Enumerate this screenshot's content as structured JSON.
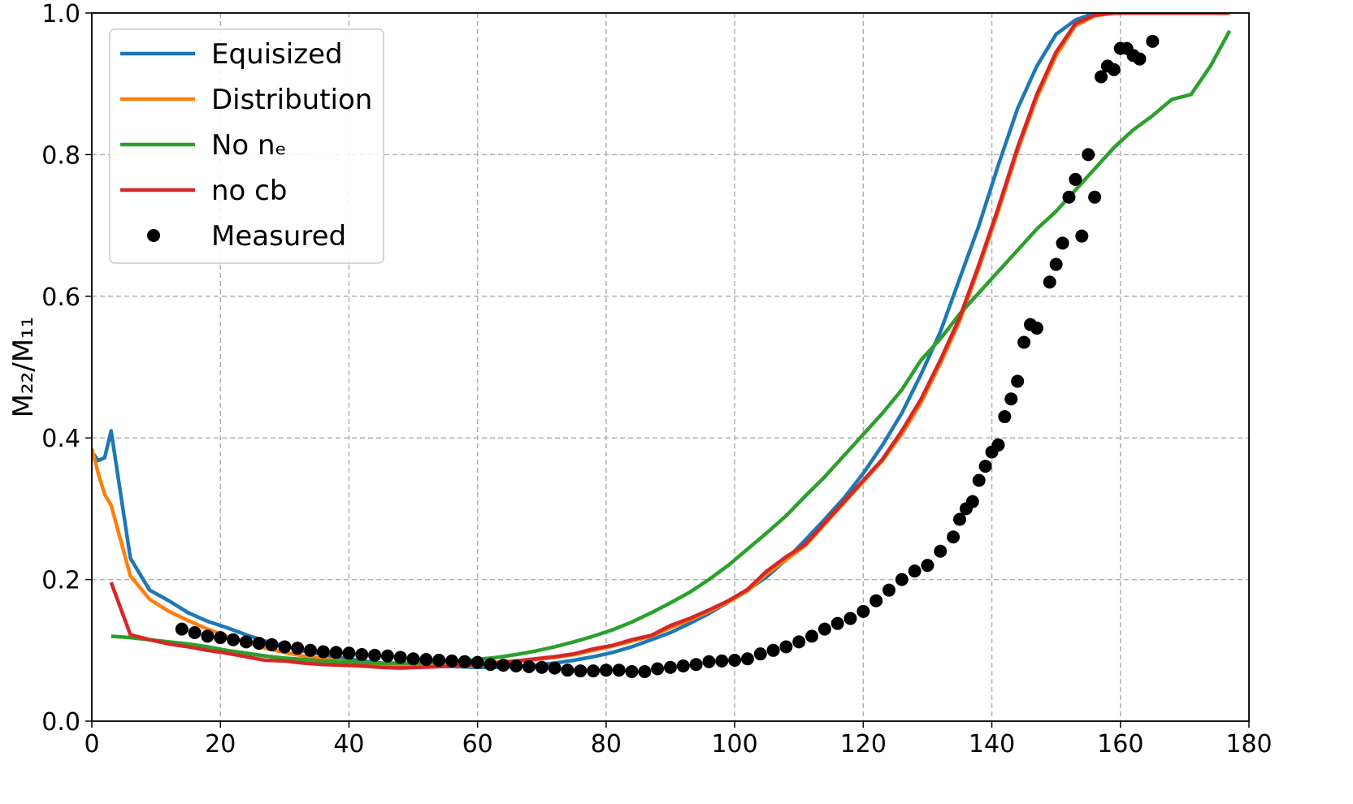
{
  "chart_data": {
    "type": "line",
    "ylabel": "M₂₂/M₁₁",
    "xlim": [
      0,
      180
    ],
    "xticks": [
      0,
      20,
      40,
      60,
      80,
      100,
      120,
      140,
      160,
      180
    ],
    "ylim": [
      0,
      1
    ],
    "yticks": [
      {
        "value": 0,
        "label": "0.0"
      },
      {
        "value": 0.2,
        "label": "0.2"
      },
      {
        "value": 0.4,
        "label": "0.4"
      },
      {
        "value": 0.6,
        "label": "0.6"
      },
      {
        "value": 0.8,
        "label": "0.8"
      },
      {
        "value": 1,
        "label": "1.0"
      }
    ],
    "grid": true,
    "legend": "upper left",
    "series": [
      {
        "name": "Equisized",
        "color": "#1f77b4",
        "style": "line",
        "x": [
          0,
          1,
          2,
          3,
          6,
          9,
          12,
          15,
          18,
          21,
          24,
          27,
          30,
          33,
          36,
          39,
          42,
          45,
          48,
          51,
          54,
          57,
          60,
          63,
          66,
          69,
          72,
          75,
          78,
          81,
          84,
          87,
          90,
          93,
          96,
          99,
          102,
          105,
          108,
          111,
          114,
          117,
          120,
          123,
          126,
          129,
          132,
          135,
          138,
          141,
          144,
          147,
          150,
          153,
          156,
          159,
          162,
          165,
          168,
          171,
          174,
          177
        ],
        "values": [
          0.38,
          0.368,
          0.372,
          0.41,
          0.23,
          0.185,
          0.17,
          0.153,
          0.141,
          0.132,
          0.122,
          0.113,
          0.106,
          0.099,
          0.094,
          0.089,
          0.085,
          0.082,
          0.08,
          0.079,
          0.078,
          0.077,
          0.076,
          0.076,
          0.077,
          0.079,
          0.082,
          0.086,
          0.091,
          0.097,
          0.105,
          0.115,
          0.125,
          0.138,
          0.152,
          0.168,
          0.185,
          0.204,
          0.228,
          0.256,
          0.285,
          0.315,
          0.35,
          0.39,
          0.435,
          0.49,
          0.55,
          0.625,
          0.7,
          0.785,
          0.865,
          0.925,
          0.97,
          0.99,
          1,
          1,
          1,
          1,
          1,
          1,
          1,
          1
        ]
      },
      {
        "name": "Distribution",
        "color": "#ff7f0e",
        "style": "line",
        "x": [
          0,
          1,
          2,
          3,
          6,
          9,
          12,
          15,
          18,
          21,
          24,
          27,
          30,
          33,
          36,
          39,
          42,
          45,
          48,
          51,
          54,
          57,
          60,
          63,
          66,
          69,
          72,
          75,
          78,
          81,
          84,
          87,
          90,
          93,
          96,
          99,
          102,
          105,
          108,
          111,
          114,
          117,
          120,
          123,
          126,
          129,
          132,
          135,
          138,
          141,
          144,
          147,
          150,
          153,
          156,
          159,
          162,
          165,
          168,
          171,
          174,
          177
        ],
        "values": [
          0.385,
          0.35,
          0.32,
          0.305,
          0.205,
          0.172,
          0.155,
          0.142,
          0.13,
          0.12,
          0.111,
          0.103,
          0.097,
          0.092,
          0.088,
          0.085,
          0.082,
          0.08,
          0.079,
          0.078,
          0.078,
          0.078,
          0.079,
          0.081,
          0.084,
          0.087,
          0.09,
          0.094,
          0.1,
          0.106,
          0.113,
          0.12,
          0.132,
          0.143,
          0.155,
          0.168,
          0.184,
          0.208,
          0.228,
          0.248,
          0.278,
          0.308,
          0.338,
          0.368,
          0.405,
          0.45,
          0.505,
          0.565,
          0.64,
          0.72,
          0.805,
          0.88,
          0.94,
          0.982,
          0.996,
          1,
          1,
          1,
          1,
          1,
          1,
          1
        ]
      },
      {
        "name": "No nₑ",
        "color": "#2ca02c",
        "style": "line",
        "x": [
          3,
          6,
          9,
          12,
          15,
          18,
          21,
          24,
          27,
          30,
          33,
          36,
          39,
          42,
          45,
          48,
          51,
          54,
          57,
          60,
          63,
          66,
          69,
          72,
          75,
          78,
          81,
          84,
          87,
          90,
          93,
          96,
          99,
          102,
          105,
          108,
          111,
          114,
          117,
          120,
          123,
          126,
          129,
          132,
          135,
          138,
          141,
          144,
          147,
          150,
          153,
          156,
          159,
          162,
          165,
          168,
          171,
          174,
          177
        ],
        "values": [
          0.12,
          0.118,
          0.115,
          0.112,
          0.109,
          0.105,
          0.1,
          0.096,
          0.092,
          0.089,
          0.087,
          0.085,
          0.084,
          0.083,
          0.082,
          0.082,
          0.082,
          0.083,
          0.085,
          0.087,
          0.09,
          0.094,
          0.099,
          0.105,
          0.112,
          0.12,
          0.129,
          0.14,
          0.153,
          0.167,
          0.182,
          0.2,
          0.22,
          0.243,
          0.266,
          0.29,
          0.318,
          0.345,
          0.375,
          0.405,
          0.435,
          0.468,
          0.51,
          0.54,
          0.575,
          0.605,
          0.635,
          0.665,
          0.695,
          0.72,
          0.75,
          0.78,
          0.81,
          0.835,
          0.855,
          0.878,
          0.885,
          0.925,
          0.975
        ]
      },
      {
        "name": "no cb",
        "color": "#d62728",
        "style": "line",
        "x": [
          3,
          6,
          9,
          12,
          15,
          18,
          21,
          24,
          27,
          30,
          33,
          36,
          39,
          42,
          45,
          48,
          51,
          54,
          57,
          60,
          63,
          66,
          69,
          72,
          75,
          78,
          81,
          84,
          87,
          90,
          93,
          96,
          99,
          102,
          105,
          108,
          111,
          114,
          117,
          120,
          123,
          126,
          129,
          132,
          135,
          138,
          141,
          144,
          147,
          150,
          153,
          156,
          159,
          162,
          165,
          168,
          171,
          174,
          177
        ],
        "values": [
          0.196,
          0.122,
          0.115,
          0.109,
          0.105,
          0.1,
          0.096,
          0.091,
          0.086,
          0.085,
          0.082,
          0.08,
          0.079,
          0.078,
          0.076,
          0.075,
          0.076,
          0.077,
          0.078,
          0.08,
          0.083,
          0.085,
          0.088,
          0.091,
          0.095,
          0.102,
          0.107,
          0.115,
          0.121,
          0.135,
          0.145,
          0.157,
          0.17,
          0.186,
          0.212,
          0.232,
          0.25,
          0.28,
          0.31,
          0.34,
          0.37,
          0.41,
          0.455,
          0.51,
          0.57,
          0.645,
          0.725,
          0.81,
          0.885,
          0.945,
          0.985,
          0.997,
          1,
          1,
          1,
          1,
          1,
          1,
          1
        ]
      },
      {
        "name": "Measured",
        "color": "#000000",
        "style": "points",
        "x": [
          14,
          16,
          18,
          20,
          22,
          24,
          26,
          28,
          30,
          32,
          34,
          36,
          38,
          40,
          42,
          44,
          46,
          48,
          50,
          52,
          54,
          56,
          58,
          60,
          62,
          64,
          66,
          68,
          70,
          72,
          74,
          76,
          78,
          80,
          82,
          84,
          86,
          88,
          90,
          92,
          94,
          96,
          98,
          100,
          102,
          104,
          106,
          108,
          110,
          112,
          114,
          116,
          118,
          120,
          122,
          124,
          126,
          128,
          130,
          132,
          134,
          135,
          136,
          137,
          138,
          139,
          140,
          141,
          142,
          143,
          144,
          145,
          146,
          147,
          149,
          150,
          151,
          152,
          153,
          154,
          155,
          156,
          157,
          158,
          159,
          160,
          161,
          162,
          163,
          165
        ],
        "values": [
          0.13,
          0.125,
          0.12,
          0.118,
          0.115,
          0.112,
          0.11,
          0.108,
          0.105,
          0.103,
          0.1,
          0.098,
          0.097,
          0.096,
          0.094,
          0.093,
          0.092,
          0.09,
          0.088,
          0.087,
          0.086,
          0.085,
          0.084,
          0.083,
          0.08,
          0.079,
          0.078,
          0.077,
          0.076,
          0.075,
          0.072,
          0.071,
          0.071,
          0.072,
          0.072,
          0.07,
          0.07,
          0.074,
          0.076,
          0.078,
          0.08,
          0.084,
          0.085,
          0.086,
          0.088,
          0.095,
          0.1,
          0.105,
          0.112,
          0.12,
          0.13,
          0.138,
          0.145,
          0.155,
          0.17,
          0.185,
          0.2,
          0.212,
          0.22,
          0.24,
          0.26,
          0.285,
          0.3,
          0.31,
          0.34,
          0.36,
          0.38,
          0.39,
          0.43,
          0.455,
          0.48,
          0.535,
          0.56,
          0.555,
          0.62,
          0.645,
          0.675,
          0.74,
          0.765,
          0.685,
          0.8,
          0.74,
          0.91,
          0.925,
          0.92,
          0.95,
          0.95,
          0.94,
          0.935,
          0.96
        ]
      }
    ]
  }
}
